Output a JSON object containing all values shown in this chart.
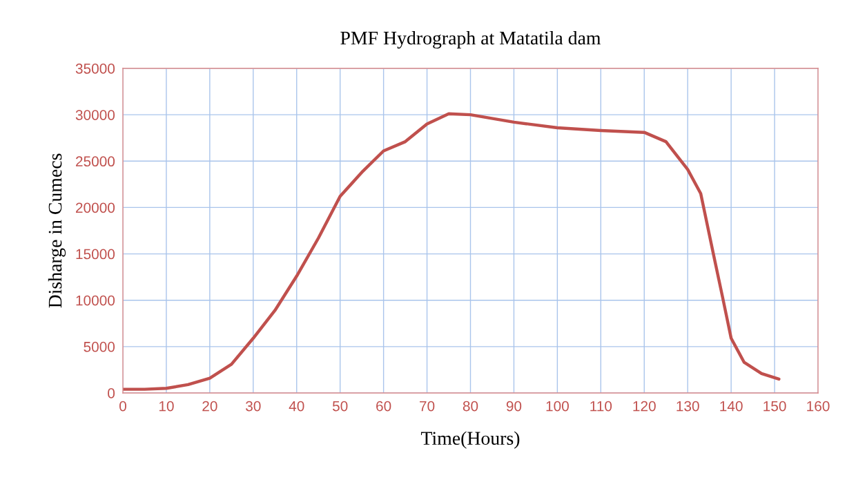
{
  "chart_data": {
    "type": "line",
    "title": "PMF Hydrograph at Matatila dam",
    "xlabel": "Time(Hours)",
    "ylabel": "Disharge in Cumecs",
    "xlim": [
      0,
      160
    ],
    "xticks": [
      0,
      10,
      20,
      30,
      40,
      50,
      60,
      70,
      80,
      90,
      100,
      110,
      120,
      130,
      140,
      150,
      160
    ],
    "ylim": [
      0,
      35000
    ],
    "yticks": [
      0,
      5000,
      10000,
      15000,
      20000,
      25000,
      30000,
      35000
    ],
    "grid": true,
    "marker": "none",
    "line_style": "solid",
    "series": [
      {
        "color": "#c0504d",
        "x": [
          0,
          5,
          10,
          15,
          20,
          25,
          30,
          35,
          40,
          45,
          50,
          55,
          60,
          65,
          70,
          75,
          80,
          90,
          100,
          110,
          120,
          125,
          130,
          133,
          136,
          138,
          140,
          143,
          147,
          151
        ],
        "values": [
          400,
          400,
          500,
          900,
          1600,
          3100,
          5900,
          8900,
          12600,
          16700,
          21200,
          23800,
          26100,
          27100,
          29000,
          30100,
          30000,
          29200,
          28600,
          28300,
          28100,
          27100,
          24100,
          21500,
          14800,
          10400,
          5900,
          3300,
          2100,
          1500
        ]
      }
    ]
  }
}
